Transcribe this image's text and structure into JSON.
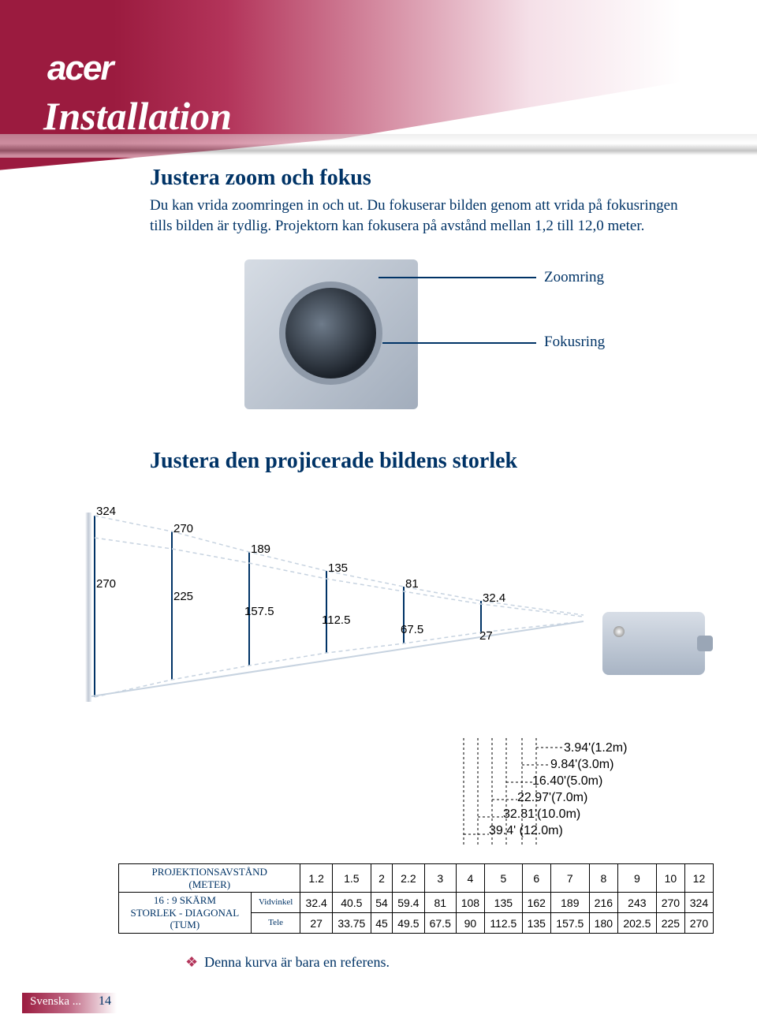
{
  "brand": "acer",
  "page_title": "Installation",
  "section1_heading": "Justera zoom och fokus",
  "section1_body": "Du kan vrida zoomringen in och ut. Du fokuserar bilden genom att vrida på fokusringen tills bilden är tydlig. Projektorn kan fokusera på avstånd mellan 1,2 till 12,0 meter.",
  "callout_zoom": "Zoomring",
  "callout_focus": "Fokusring",
  "section2_heading": "Justera den projicerade bildens storlek",
  "throw_diagram": {
    "upper_values": [
      "324",
      "270",
      "189",
      "135",
      "81",
      "32.4"
    ],
    "lower_values": [
      "270",
      "225",
      "157.5",
      "112.5",
      "67.5",
      "27"
    ],
    "line_color": "#c7d3e0",
    "dash_color": "#c7d3e0"
  },
  "distances": [
    "3.94'(1.2m)",
    "9.84'(3.0m)",
    "16.40'(5.0m)",
    "22.97'(7.0m)",
    "32.81'(10.0m)",
    "39.4' (12.0m)"
  ],
  "table": {
    "row1_label": "PROJEKTIONSAVSTÅND\n(METER)",
    "row2_label": "16 : 9 SKÄRM\nSTORLEK - DIAGONAL\n(TUM)",
    "sub_wide": "Vidvinkel",
    "sub_tele": "Tele",
    "dist_values": [
      "1.2",
      "1.5",
      "2",
      "2.2",
      "3",
      "4",
      "5",
      "6",
      "7",
      "8",
      "9",
      "10",
      "12"
    ],
    "wide_values": [
      "32.4",
      "40.5",
      "54",
      "59.4",
      "81",
      "108",
      "135",
      "162",
      "189",
      "216",
      "243",
      "270",
      "324"
    ],
    "tele_values": [
      "27",
      "33.75",
      "45",
      "49.5",
      "67.5",
      "90",
      "112.5",
      "135",
      "157.5",
      "180",
      "202.5",
      "225",
      "270"
    ]
  },
  "note_text": "Denna kurva är bara en referens.",
  "footer_lang": "Svenska ...",
  "footer_page": "14",
  "colors": {
    "accent_dark": "#003366",
    "brand_red": "#9b1b3f"
  }
}
